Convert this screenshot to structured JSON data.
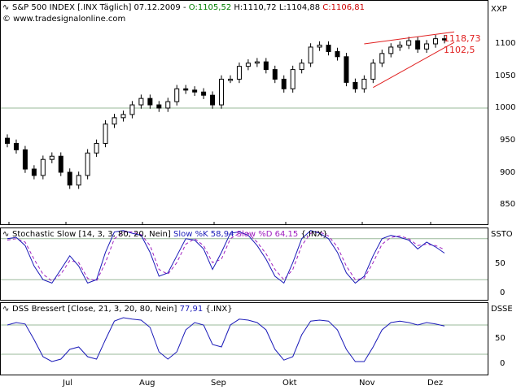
{
  "main": {
    "header": {
      "icon": "chart-wave-icon",
      "instrument": "S&P 500 INDEX [.INX Täglich] 07.12.2009 -",
      "open": "O:1105,52",
      "high": "H:1110,72",
      "low": "L:1104,88",
      "close": "C:1106,81",
      "website": "© www.tradesignalonline.com",
      "colors": {
        "open": "#008000",
        "close": "#cc0000",
        "text": "#000000"
      }
    },
    "axis_name": "XXP",
    "yticks": [
      "1100",
      "1050",
      "1000",
      "950",
      "900",
      "850"
    ],
    "annotations": {
      "upper": "1118,73",
      "lower": "1102,5"
    },
    "annotation_color": "#e02020"
  },
  "stochastic": {
    "header": {
      "icon": "chart-wave-icon",
      "title": "Stochastic Slow [14, 3, 3, 80, 20, Nein]",
      "k_label": "Slow %K 58,94",
      "d_label": "Slow %D 64,15",
      "suffix": "{.INX}"
    },
    "axis_name": "SSTO",
    "yticks": [
      "50",
      "0"
    ],
    "k_color": "#1a1ab8",
    "d_color": "#a020c0"
  },
  "dss": {
    "header": {
      "icon": "chart-wave-icon",
      "title": "DSS Bressert [Close, 21, 3, 20, 80, Nein]",
      "value": "77,91",
      "suffix": "{.INX}"
    },
    "axis_name": "DSSE",
    "yticks": [
      "50",
      "0"
    ],
    "line_color": "#1a1ab8"
  },
  "dates": [
    "Jul",
    "Aug",
    "Sep",
    "Okt",
    "Nov",
    "Dez"
  ],
  "chart_data": [
    {
      "type": "candlestick",
      "title": "S&P 500 INDEX [.INX Täglich]",
      "ylim": [
        830,
        1125
      ],
      "x": [
        "Jun",
        "Jun",
        "Jun",
        "Jun",
        "Jun",
        "Jun",
        "Jul",
        "Jul",
        "Jul",
        "Jul",
        "Jul",
        "Jul",
        "Jul",
        "Jul",
        "Jul",
        "Jul",
        "Aug",
        "Aug",
        "Aug",
        "Aug",
        "Aug",
        "Aug",
        "Aug",
        "Aug",
        "Aug",
        "Sep",
        "Sep",
        "Sep",
        "Sep",
        "Sep",
        "Sep",
        "Sep",
        "Sep",
        "Okt",
        "Okt",
        "Okt",
        "Okt",
        "Okt",
        "Okt",
        "Okt",
        "Okt",
        "Nov",
        "Nov",
        "Nov",
        "Nov",
        "Nov",
        "Nov",
        "Nov",
        "Nov",
        "Dez"
      ],
      "close": [
        945,
        935,
        905,
        895,
        920,
        925,
        900,
        880,
        895,
        930,
        945,
        975,
        985,
        990,
        1005,
        1015,
        1005,
        1000,
        1010,
        1030,
        1028,
        1025,
        1020,
        1005,
        1045,
        1045,
        1065,
        1070,
        1072,
        1060,
        1045,
        1030,
        1060,
        1070,
        1095,
        1098,
        1088,
        1080,
        1040,
        1030,
        1045,
        1070,
        1085,
        1095,
        1098,
        1105,
        1092,
        1100,
        1108,
        1106.81
      ],
      "trendlines": [
        {
          "label": "1118,73",
          "from": [
            "Okt",
            1100
          ],
          "to": [
            "Dez",
            1118.73
          ]
        },
        {
          "label": "1102,5",
          "from": [
            "Okt",
            1032
          ],
          "to": [
            "Dez",
            1102.5
          ]
        }
      ]
    },
    {
      "type": "line",
      "title": "Stochastic Slow [14, 3, 3, 80, 20, Nein]",
      "ylim": [
        -5,
        100
      ],
      "series": [
        {
          "name": "Slow %K",
          "values": [
            80,
            82,
            70,
            40,
            20,
            15,
            35,
            55,
            40,
            15,
            20,
            60,
            90,
            92,
            88,
            85,
            60,
            25,
            30,
            55,
            80,
            78,
            65,
            35,
            60,
            88,
            90,
            85,
            70,
            50,
            25,
            15,
            45,
            80,
            92,
            88,
            80,
            60,
            30,
            15,
            25,
            55,
            80,
            85,
            82,
            78,
            65,
            75,
            68,
            58.94
          ]
        },
        {
          "name": "Slow %D",
          "values": [
            78,
            80,
            75,
            50,
            28,
            18,
            28,
            48,
            45,
            22,
            18,
            45,
            80,
            90,
            90,
            86,
            70,
            35,
            28,
            45,
            72,
            80,
            70,
            45,
            50,
            80,
            88,
            88,
            75,
            58,
            35,
            20,
            35,
            70,
            88,
            90,
            84,
            68,
            40,
            20,
            22,
            45,
            72,
            82,
            84,
            80,
            70,
            72,
            70,
            64.15
          ]
        }
      ]
    },
    {
      "type": "line",
      "title": "DSS Bressert [Close, 21, 3, 20, 80, Nein]",
      "ylim": [
        -10,
        100
      ],
      "series": [
        {
          "name": "DSS Bressert",
          "values": [
            80,
            85,
            82,
            50,
            15,
            5,
            10,
            30,
            35,
            15,
            10,
            50,
            88,
            95,
            92,
            90,
            75,
            25,
            10,
            25,
            70,
            85,
            80,
            40,
            35,
            80,
            92,
            90,
            85,
            70,
            30,
            8,
            15,
            60,
            88,
            90,
            88,
            70,
            30,
            5,
            5,
            35,
            70,
            85,
            88,
            85,
            80,
            85,
            82,
            77.91
          ]
        }
      ]
    }
  ]
}
